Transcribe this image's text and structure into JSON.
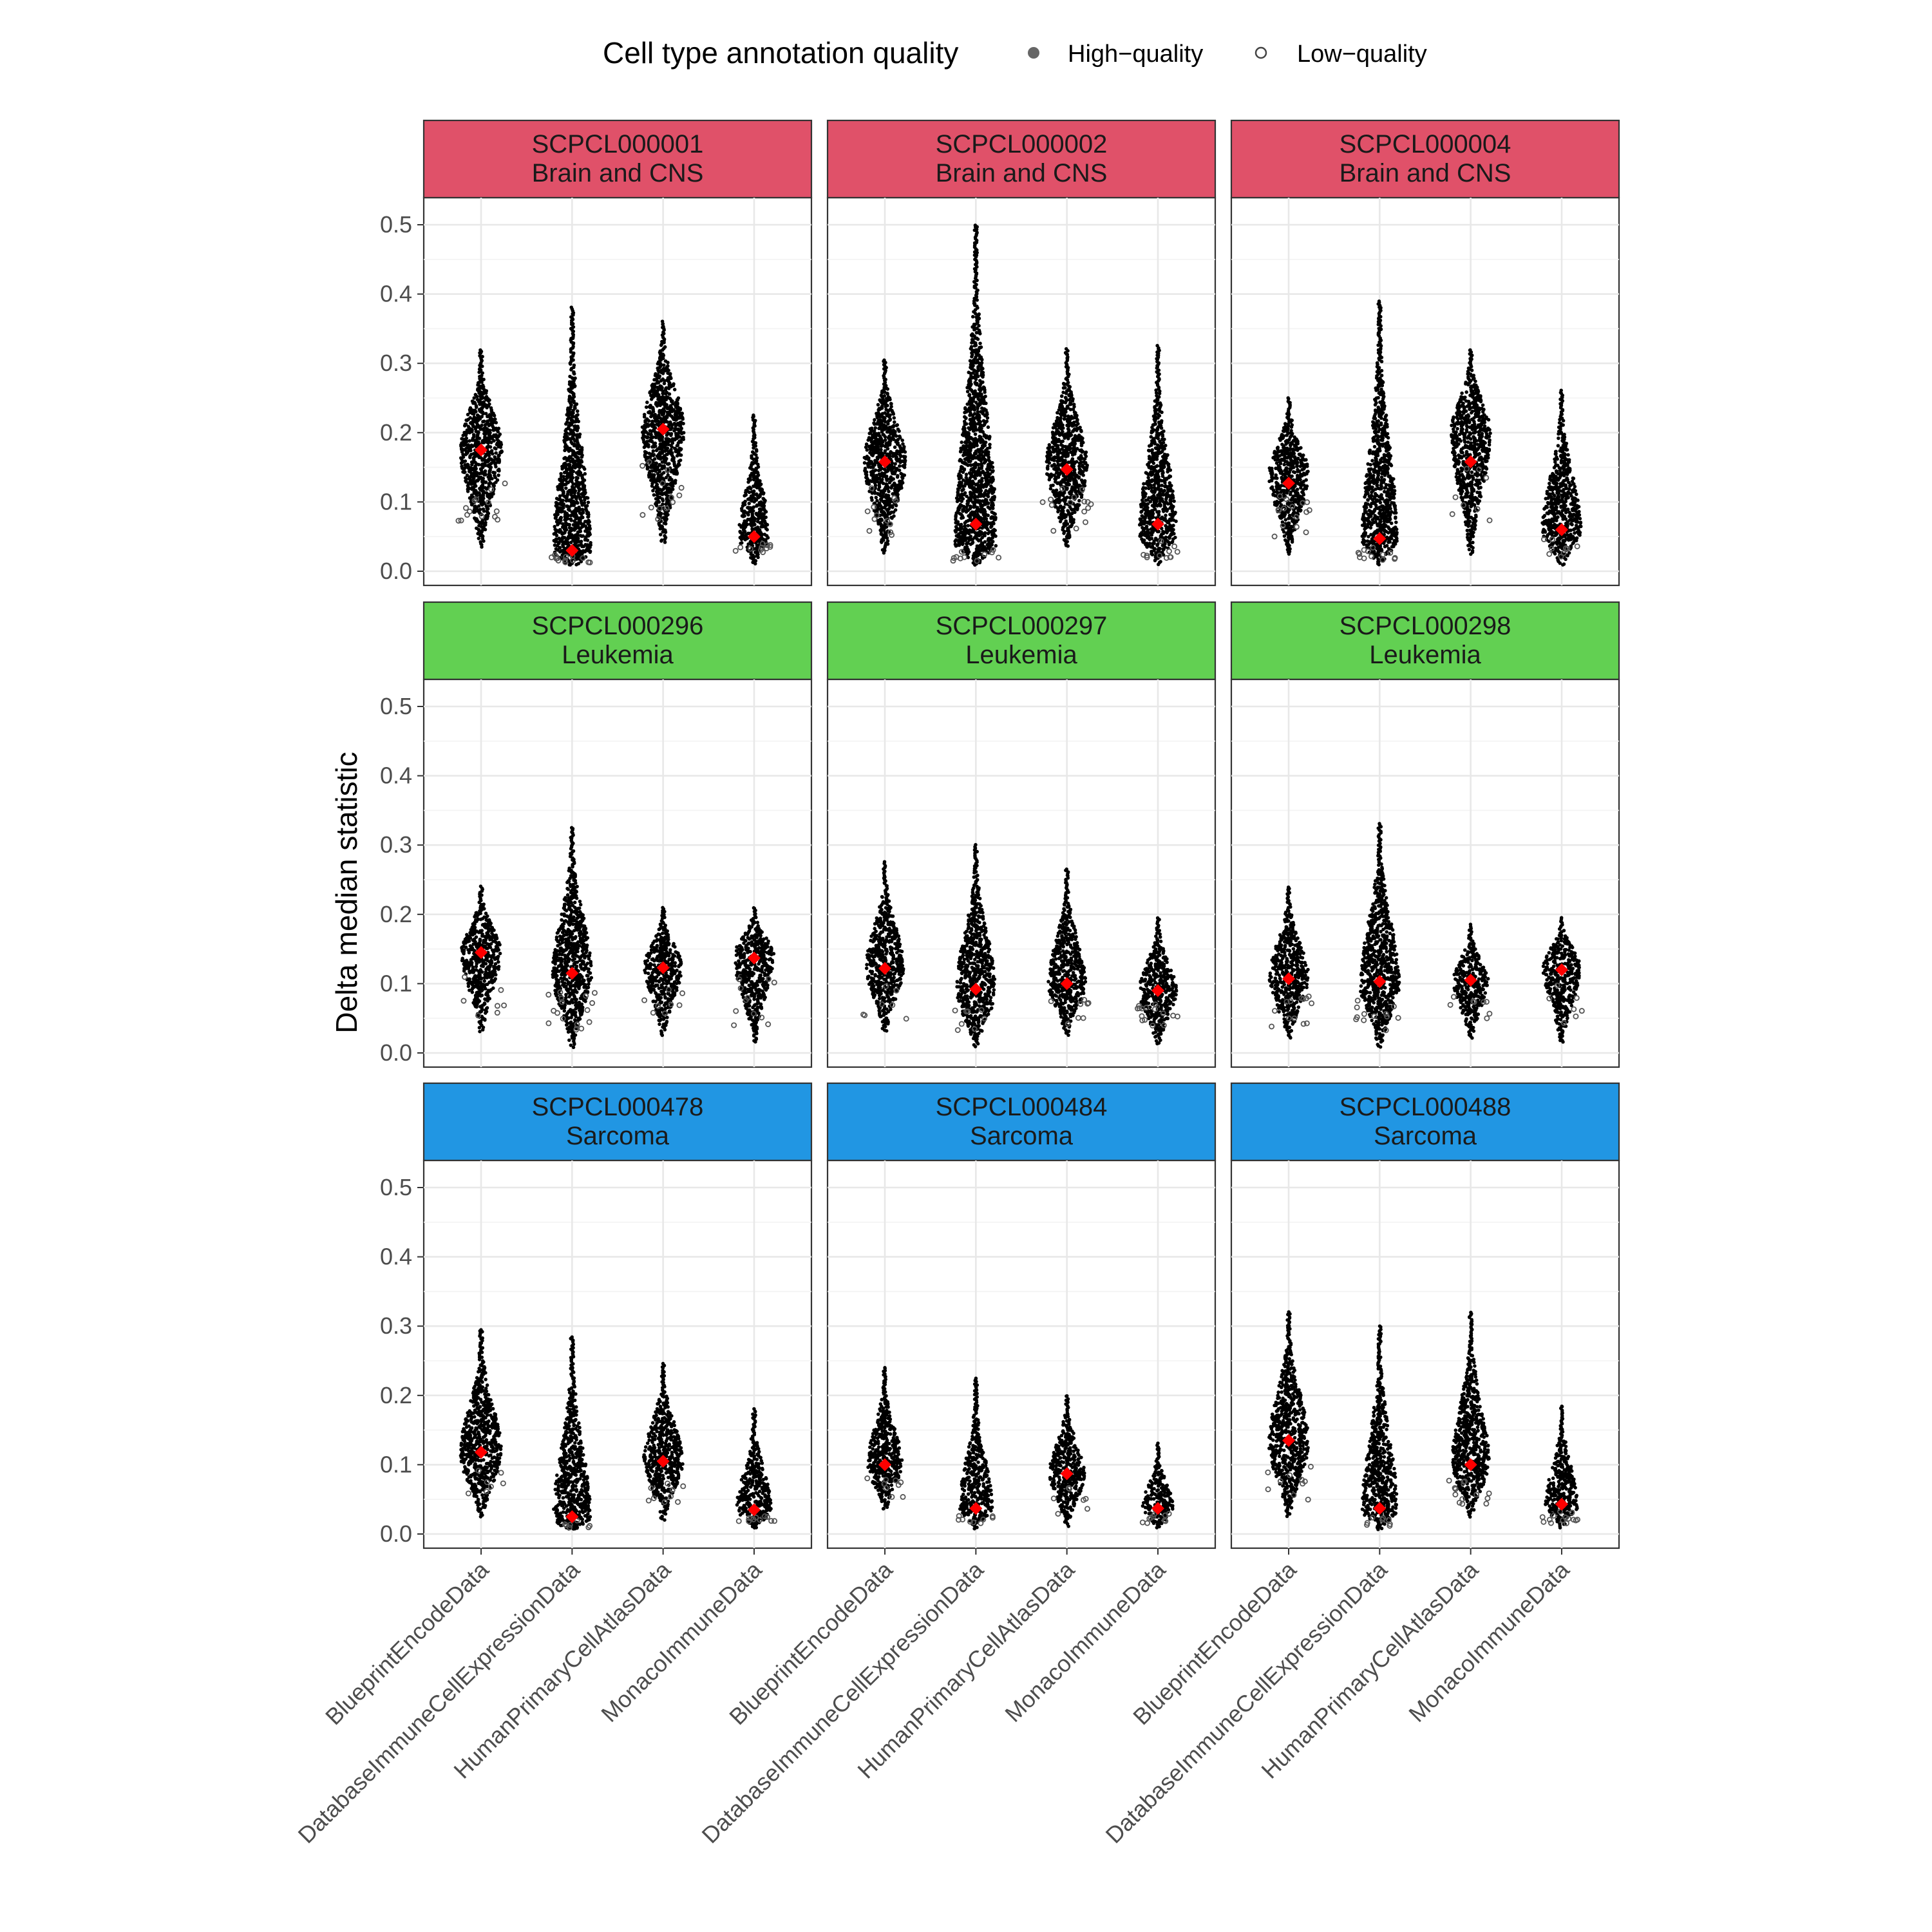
{
  "legend": {
    "title": "Cell type annotation quality",
    "placement": "top",
    "items": [
      {
        "label": "High−quality",
        "marker": "filled-circle"
      },
      {
        "label": "Low−quality",
        "marker": "open-circle"
      }
    ]
  },
  "colors": {
    "brain": "#E05169",
    "leukemia": "#62D052",
    "sarcoma": "#2196E3",
    "point": "#000000",
    "median": "#FF0000",
    "low_quality_point": "#555555"
  },
  "chart_data": {
    "type": "violin-beeswarm",
    "ylabel": "Delta median statistic",
    "xlabel": "",
    "ylim": [
      0,
      0.5
    ],
    "yticks": [
      "0.0",
      "0.1",
      "0.2",
      "0.3",
      "0.4",
      "0.5"
    ],
    "grid": true,
    "facet_layout": {
      "rows": 3,
      "cols": 3
    },
    "categories": [
      "BlueprintEncodeData",
      "DatabaseImmuneCellExpressionData",
      "HumanPrimaryCellAtlasData",
      "MonacoImmuneData"
    ],
    "panels": [
      {
        "id": "SCPCL000001",
        "diagnosis": "Brain and CNS",
        "color_key": "brain",
        "series": [
          {
            "category": "BlueprintEncodeData",
            "median": 0.175,
            "min": 0.035,
            "max": 0.32,
            "mode": 0.175,
            "width": 0.95
          },
          {
            "category": "DatabaseImmuneCellExpressionData",
            "median": 0.03,
            "min": 0.008,
            "max": 0.38,
            "mode": 0.03,
            "width": 0.85
          },
          {
            "category": "HumanPrimaryCellAtlasData",
            "median": 0.205,
            "min": 0.04,
            "max": 0.36,
            "mode": 0.205,
            "width": 0.95
          },
          {
            "category": "MonacoImmuneData",
            "median": 0.05,
            "min": 0.01,
            "max": 0.225,
            "mode": 0.05,
            "width": 0.7
          }
        ]
      },
      {
        "id": "SCPCL000002",
        "diagnosis": "Brain and CNS",
        "color_key": "brain",
        "series": [
          {
            "category": "BlueprintEncodeData",
            "median": 0.158,
            "min": 0.025,
            "max": 0.305,
            "mode": 0.16,
            "width": 0.95
          },
          {
            "category": "DatabaseImmuneCellExpressionData",
            "median": 0.068,
            "min": 0.008,
            "max": 0.5,
            "mode": 0.04,
            "width": 0.95
          },
          {
            "category": "HumanPrimaryCellAtlasData",
            "median": 0.147,
            "min": 0.035,
            "max": 0.32,
            "mode": 0.15,
            "width": 0.95
          },
          {
            "category": "MonacoImmuneData",
            "median": 0.068,
            "min": 0.01,
            "max": 0.325,
            "mode": 0.055,
            "width": 0.85
          }
        ]
      },
      {
        "id": "SCPCL000004",
        "diagnosis": "Brain and CNS",
        "color_key": "brain",
        "series": [
          {
            "category": "BlueprintEncodeData",
            "median": 0.127,
            "min": 0.025,
            "max": 0.25,
            "mode": 0.14,
            "width": 0.9
          },
          {
            "category": "DatabaseImmuneCellExpressionData",
            "median": 0.047,
            "min": 0.008,
            "max": 0.39,
            "mode": 0.045,
            "width": 0.8
          },
          {
            "category": "HumanPrimaryCellAtlasData",
            "median": 0.158,
            "min": 0.025,
            "max": 0.32,
            "mode": 0.2,
            "width": 0.9
          },
          {
            "category": "MonacoImmuneData",
            "median": 0.06,
            "min": 0.008,
            "max": 0.26,
            "mode": 0.06,
            "width": 0.9
          }
        ]
      },
      {
        "id": "SCPCL000296",
        "diagnosis": "Leukemia",
        "color_key": "leukemia",
        "series": [
          {
            "category": "BlueprintEncodeData",
            "median": 0.145,
            "min": 0.03,
            "max": 0.24,
            "mode": 0.145,
            "width": 0.9
          },
          {
            "category": "DatabaseImmuneCellExpressionData",
            "median": 0.115,
            "min": 0.008,
            "max": 0.325,
            "mode": 0.115,
            "width": 0.9
          },
          {
            "category": "HumanPrimaryCellAtlasData",
            "median": 0.123,
            "min": 0.025,
            "max": 0.21,
            "mode": 0.125,
            "width": 0.85
          },
          {
            "category": "MonacoImmuneData",
            "median": 0.137,
            "min": 0.015,
            "max": 0.21,
            "mode": 0.14,
            "width": 0.9
          }
        ]
      },
      {
        "id": "SCPCL000297",
        "diagnosis": "Leukemia",
        "color_key": "leukemia",
        "series": [
          {
            "category": "BlueprintEncodeData",
            "median": 0.122,
            "min": 0.03,
            "max": 0.275,
            "mode": 0.125,
            "width": 0.85
          },
          {
            "category": "DatabaseImmuneCellExpressionData",
            "median": 0.092,
            "min": 0.008,
            "max": 0.3,
            "mode": 0.09,
            "width": 0.9
          },
          {
            "category": "HumanPrimaryCellAtlasData",
            "median": 0.1,
            "min": 0.025,
            "max": 0.265,
            "mode": 0.1,
            "width": 0.85
          },
          {
            "category": "MonacoImmuneData",
            "median": 0.09,
            "min": 0.012,
            "max": 0.195,
            "mode": 0.09,
            "width": 0.85
          }
        ]
      },
      {
        "id": "SCPCL000298",
        "diagnosis": "Leukemia",
        "color_key": "leukemia",
        "series": [
          {
            "category": "BlueprintEncodeData",
            "median": 0.107,
            "min": 0.02,
            "max": 0.24,
            "mode": 0.11,
            "width": 0.9
          },
          {
            "category": "DatabaseImmuneCellExpressionData",
            "median": 0.103,
            "min": 0.008,
            "max": 0.33,
            "mode": 0.1,
            "width": 0.9
          },
          {
            "category": "HumanPrimaryCellAtlasData",
            "median": 0.105,
            "min": 0.02,
            "max": 0.185,
            "mode": 0.105,
            "width": 0.8
          },
          {
            "category": "MonacoImmuneData",
            "median": 0.12,
            "min": 0.015,
            "max": 0.195,
            "mode": 0.125,
            "width": 0.85
          }
        ]
      },
      {
        "id": "SCPCL000478",
        "diagnosis": "Sarcoma",
        "color_key": "sarcoma",
        "series": [
          {
            "category": "BlueprintEncodeData",
            "median": 0.118,
            "min": 0.025,
            "max": 0.295,
            "mode": 0.115,
            "width": 0.95
          },
          {
            "category": "DatabaseImmuneCellExpressionData",
            "median": 0.025,
            "min": 0.005,
            "max": 0.285,
            "mode": 0.025,
            "width": 0.85
          },
          {
            "category": "HumanPrimaryCellAtlasData",
            "median": 0.105,
            "min": 0.02,
            "max": 0.245,
            "mode": 0.105,
            "width": 0.9
          },
          {
            "category": "MonacoImmuneData",
            "median": 0.035,
            "min": 0.008,
            "max": 0.18,
            "mode": 0.035,
            "width": 0.8
          }
        ]
      },
      {
        "id": "SCPCL000484",
        "diagnosis": "Sarcoma",
        "color_key": "sarcoma",
        "series": [
          {
            "category": "BlueprintEncodeData",
            "median": 0.1,
            "min": 0.035,
            "max": 0.24,
            "mode": 0.1,
            "width": 0.8
          },
          {
            "category": "DatabaseImmuneCellExpressionData",
            "median": 0.037,
            "min": 0.008,
            "max": 0.225,
            "mode": 0.037,
            "width": 0.75
          },
          {
            "category": "HumanPrimaryCellAtlasData",
            "median": 0.087,
            "min": 0.01,
            "max": 0.2,
            "mode": 0.087,
            "width": 0.8
          },
          {
            "category": "MonacoImmuneData",
            "median": 0.037,
            "min": 0.008,
            "max": 0.13,
            "mode": 0.037,
            "width": 0.7
          }
        ]
      },
      {
        "id": "SCPCL000488",
        "diagnosis": "Sarcoma",
        "color_key": "sarcoma",
        "series": [
          {
            "category": "BlueprintEncodeData",
            "median": 0.135,
            "min": 0.025,
            "max": 0.32,
            "mode": 0.13,
            "width": 0.9
          },
          {
            "category": "DatabaseImmuneCellExpressionData",
            "median": 0.037,
            "min": 0.005,
            "max": 0.3,
            "mode": 0.035,
            "width": 0.8
          },
          {
            "category": "HumanPrimaryCellAtlasData",
            "median": 0.1,
            "min": 0.025,
            "max": 0.32,
            "mode": 0.1,
            "width": 0.85
          },
          {
            "category": "MonacoImmuneData",
            "median": 0.043,
            "min": 0.008,
            "max": 0.185,
            "mode": 0.043,
            "width": 0.75
          }
        ]
      }
    ]
  }
}
